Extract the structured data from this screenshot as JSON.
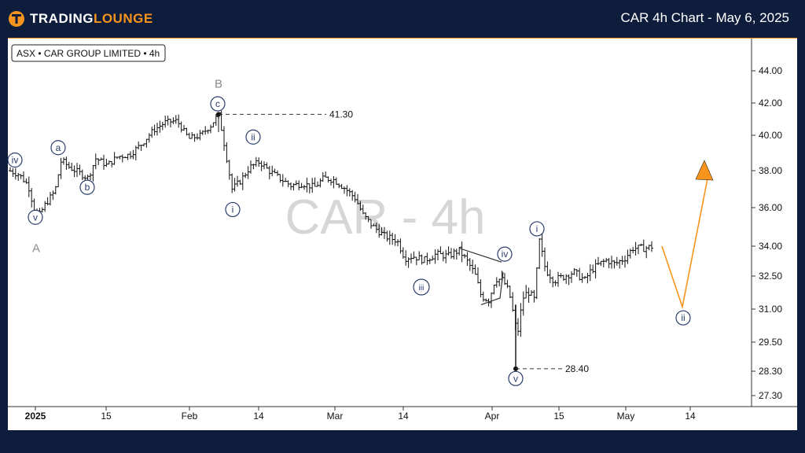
{
  "header": {
    "brand_main": "TRADING",
    "brand_accent": "LOUNGE",
    "chart_heading": "CAR 4h Chart - May 6, 2025"
  },
  "chart_data": {
    "type": "candlestick",
    "instrument_label": "ASX • CAR GROUP LIMITED • 4h",
    "watermark": "CAR - 4h",
    "y_ticks": [
      "44.00",
      "42.00",
      "40.00",
      "38.00",
      "36.00",
      "34.00",
      "32.50",
      "31.00",
      "29.50",
      "28.30",
      "27.30"
    ],
    "y_tick_values": [
      44.0,
      42.0,
      40.0,
      38.0,
      36.0,
      34.0,
      32.5,
      31.0,
      29.5,
      28.3,
      27.3
    ],
    "x_ticks": [
      {
        "label": "2025",
        "bold": true
      },
      {
        "label": "15",
        "bold": false
      },
      {
        "label": "Feb",
        "bold": false
      },
      {
        "label": "14",
        "bold": false
      },
      {
        "label": "Mar",
        "bold": false
      },
      {
        "label": "14",
        "bold": false
      },
      {
        "label": "Apr",
        "bold": false
      },
      {
        "label": "15",
        "bold": false
      },
      {
        "label": "May",
        "bold": false
      },
      {
        "label": "14",
        "bold": false
      }
    ],
    "price_levels": [
      {
        "label": "41.30",
        "value": 41.3
      },
      {
        "label": "28.40",
        "value": 28.4
      }
    ],
    "wave_labels": [
      {
        "text": "iv",
        "price": 38.6
      },
      {
        "text": "a",
        "price": 39.3
      },
      {
        "text": "v",
        "price": 35.5
      },
      {
        "text": "A",
        "price": 33.9
      },
      {
        "text": "b",
        "price": 37.1
      },
      {
        "text": "B",
        "price": 43.2
      },
      {
        "text": "c",
        "price": 41.95
      },
      {
        "text": "ii",
        "price": 39.9
      },
      {
        "text": "i",
        "price": 35.9
      },
      {
        "text": "iii",
        "price": 32.0
      },
      {
        "text": "iv",
        "price": 33.6
      },
      {
        "text": "v",
        "price": 28.0
      },
      {
        "text": "i",
        "price": 34.9
      },
      {
        "text": "ii",
        "price": 30.6
      }
    ],
    "projection": {
      "points": [
        34.0,
        31.1,
        38.0
      ],
      "color": "#f7941d"
    },
    "colors": {
      "accent": "#f7941d",
      "navy": "#0f1d3d",
      "wave_label": "#2a3d6b",
      "bars": "#111111"
    }
  }
}
